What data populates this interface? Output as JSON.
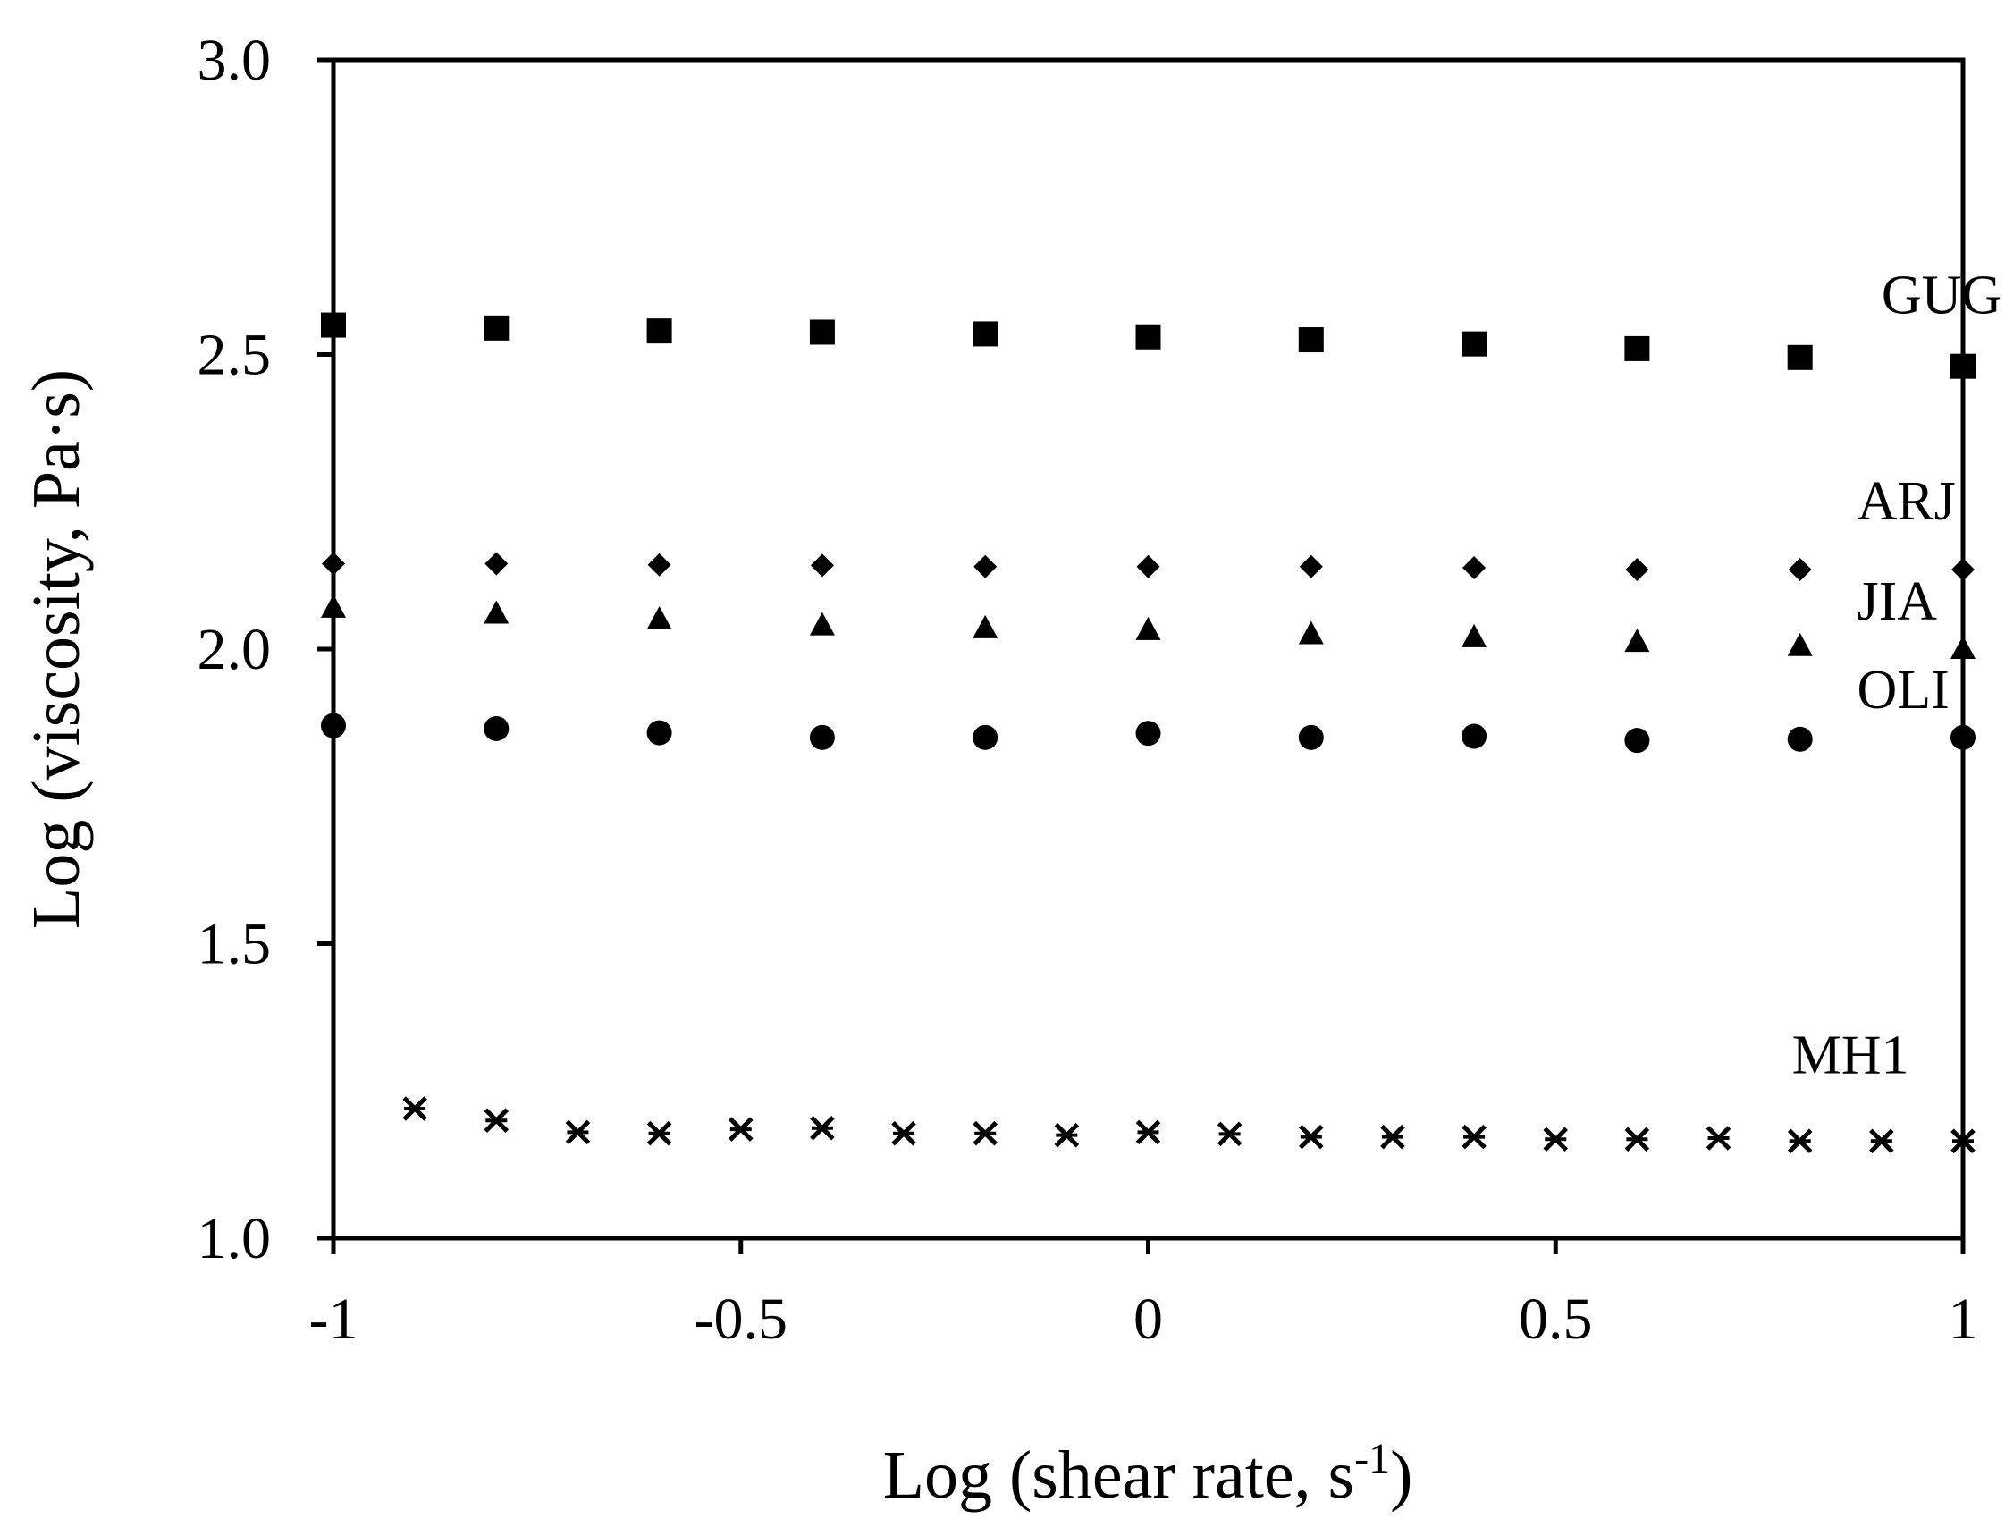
{
  "chart_data": {
    "type": "scatter",
    "xlabel_main": "Log (shear rate, s",
    "xlabel_sup": "-1",
    "xlabel_close": ")",
    "ylabel": "Log (viscosity, Pa·s)",
    "xlim": [
      -1,
      1
    ],
    "ylim": [
      1.0,
      3.0
    ],
    "x_ticks": [
      -1,
      -0.5,
      0,
      0.5,
      1
    ],
    "x_tick_labels": [
      "-1",
      "-0.5",
      "0",
      "0.5",
      "1"
    ],
    "y_ticks": [
      1.0,
      1.5,
      2.0,
      2.5,
      3.0
    ],
    "y_tick_labels": [
      "1.0",
      "1.5",
      "2.0",
      "2.5",
      "3.0"
    ],
    "grid": false,
    "series": [
      {
        "name": "GUG",
        "marker": "square",
        "label_pos": [
          0.9,
          2.57
        ],
        "points": [
          [
            -1,
            2.55
          ],
          [
            -0.8,
            2.545
          ],
          [
            -0.6,
            2.54
          ],
          [
            -0.4,
            2.538
          ],
          [
            -0.2,
            2.535
          ],
          [
            0,
            2.53
          ],
          [
            0.2,
            2.525
          ],
          [
            0.4,
            2.518
          ],
          [
            0.6,
            2.51
          ],
          [
            0.8,
            2.495
          ],
          [
            1,
            2.48
          ]
        ]
      },
      {
        "name": "ARJ",
        "marker": "diamond",
        "label_pos": [
          0.87,
          2.22
        ],
        "points": [
          [
            -1,
            2.145
          ],
          [
            -0.8,
            2.145
          ],
          [
            -0.6,
            2.143
          ],
          [
            -0.4,
            2.142
          ],
          [
            -0.2,
            2.14
          ],
          [
            0,
            2.14
          ],
          [
            0.2,
            2.14
          ],
          [
            0.4,
            2.138
          ],
          [
            0.6,
            2.135
          ],
          [
            0.8,
            2.135
          ],
          [
            1,
            2.135
          ]
        ]
      },
      {
        "name": "JIA",
        "marker": "triangle",
        "label_pos": [
          0.87,
          2.05
        ],
        "points": [
          [
            -1,
            2.07
          ],
          [
            -0.8,
            2.06
          ],
          [
            -0.6,
            2.05
          ],
          [
            -0.4,
            2.04
          ],
          [
            -0.2,
            2.035
          ],
          [
            0,
            2.032
          ],
          [
            0.2,
            2.025
          ],
          [
            0.4,
            2.02
          ],
          [
            0.6,
            2.012
          ],
          [
            0.8,
            2.005
          ],
          [
            1,
            2.0
          ]
        ]
      },
      {
        "name": "OLI",
        "marker": "circle",
        "label_pos": [
          0.87,
          1.9
        ],
        "points": [
          [
            -1,
            1.87
          ],
          [
            -0.8,
            1.865
          ],
          [
            -0.6,
            1.858
          ],
          [
            -0.4,
            1.85
          ],
          [
            -0.2,
            1.85
          ],
          [
            0,
            1.857
          ],
          [
            0.2,
            1.85
          ],
          [
            0.4,
            1.852
          ],
          [
            0.6,
            1.845
          ],
          [
            0.8,
            1.847
          ],
          [
            1,
            1.85
          ]
        ]
      },
      {
        "name": "MH1",
        "marker": "asterisk",
        "label_pos": [
          0.79,
          1.28
        ],
        "points": [
          [
            -0.9,
            1.22
          ],
          [
            -0.8,
            1.2
          ],
          [
            -0.7,
            1.18
          ],
          [
            -0.6,
            1.178
          ],
          [
            -0.5,
            1.185
          ],
          [
            -0.4,
            1.187
          ],
          [
            -0.3,
            1.178
          ],
          [
            -0.2,
            1.178
          ],
          [
            -0.1,
            1.175
          ],
          [
            0,
            1.18
          ],
          [
            0.1,
            1.177
          ],
          [
            0.2,
            1.172
          ],
          [
            0.3,
            1.172
          ],
          [
            0.4,
            1.172
          ],
          [
            0.5,
            1.168
          ],
          [
            0.6,
            1.168
          ],
          [
            0.7,
            1.17
          ],
          [
            0.8,
            1.165
          ],
          [
            0.9,
            1.165
          ],
          [
            1,
            1.165
          ]
        ]
      }
    ]
  }
}
